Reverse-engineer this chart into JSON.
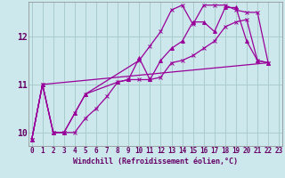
{
  "xlabel": "Windchill (Refroidissement éolien,°C)",
  "bg_color": "#cce8ec",
  "grid_color": "#aacccc",
  "line_color": "#990099",
  "xlim": [
    -0.3,
    23.3
  ],
  "ylim": [
    9.72,
    12.72
  ],
  "yticks": [
    10,
    11,
    12
  ],
  "xticks": [
    0,
    1,
    2,
    3,
    4,
    5,
    6,
    7,
    8,
    9,
    10,
    11,
    12,
    13,
    14,
    15,
    16,
    17,
    18,
    19,
    20,
    21,
    22,
    23
  ],
  "curve1_x": [
    0,
    1,
    2,
    3,
    4,
    5,
    6,
    7,
    8,
    9,
    10,
    11,
    12,
    13,
    14,
    15,
    16,
    17,
    18,
    19,
    20,
    21,
    22
  ],
  "curve1_y": [
    9.85,
    11.0,
    10.0,
    10.0,
    10.0,
    10.3,
    10.5,
    10.75,
    11.05,
    11.1,
    11.1,
    11.1,
    11.15,
    11.45,
    11.5,
    11.6,
    11.75,
    11.9,
    12.2,
    12.3,
    12.35,
    11.5,
    11.45
  ],
  "curve2_x": [
    0,
    1,
    2,
    3,
    4,
    5,
    10,
    11,
    12,
    13,
    14,
    15,
    16,
    17,
    18,
    19,
    20,
    21,
    22
  ],
  "curve2_y": [
    9.85,
    11.0,
    10.0,
    10.0,
    10.4,
    10.8,
    11.5,
    11.8,
    12.1,
    12.55,
    12.65,
    12.25,
    12.65,
    12.65,
    12.65,
    12.55,
    12.5,
    12.5,
    11.45
  ],
  "curve3_x": [
    0,
    1,
    2,
    3,
    4,
    5,
    8,
    9,
    10,
    11,
    12,
    13,
    14,
    15,
    16,
    17,
    18,
    19,
    20,
    21,
    22
  ],
  "curve3_y": [
    9.85,
    11.0,
    10.0,
    10.0,
    10.4,
    10.8,
    11.05,
    11.1,
    11.55,
    11.1,
    11.5,
    11.75,
    11.9,
    12.3,
    12.3,
    12.1,
    12.6,
    12.6,
    11.9,
    11.5,
    11.45
  ],
  "line4_x": [
    0,
    1,
    22
  ],
  "line4_y": [
    9.85,
    11.0,
    11.45
  ],
  "xlabel_fontsize": 6.0,
  "xlabel_color": "#660066",
  "tick_color": "#660066",
  "tick_fontsize": 5.5
}
